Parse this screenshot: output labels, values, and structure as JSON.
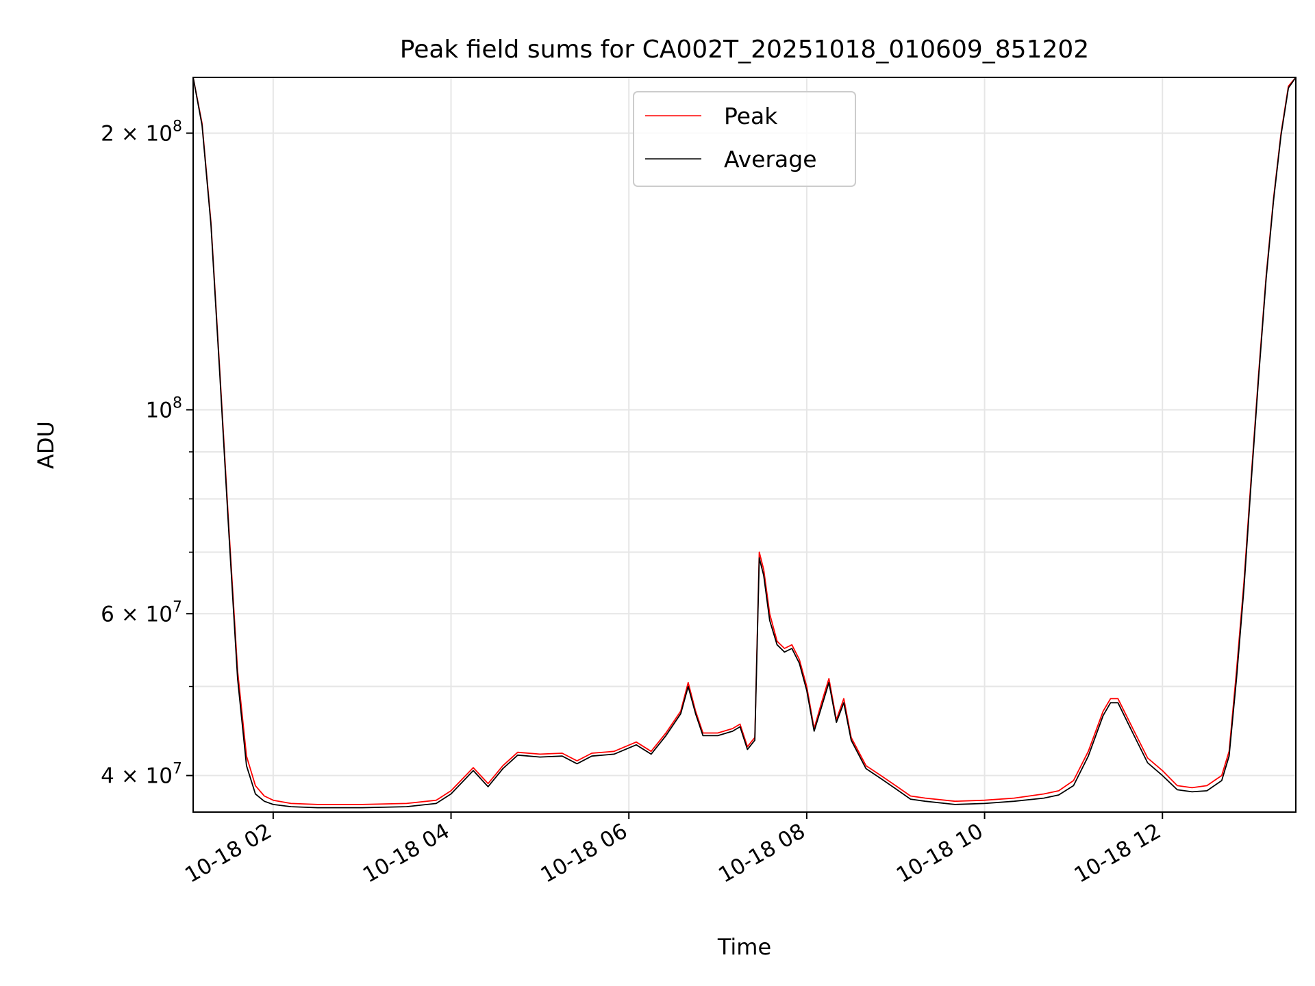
{
  "chart_data": {
    "type": "line",
    "title": "Peak field sums for CA002T_20251018_010609_851202",
    "xlabel": "Time",
    "ylabel": "ADU",
    "y_scale": "log",
    "grid": true,
    "legend_position": "top-center",
    "xlim": [
      "2025-10-18 01:06",
      "2025-10-18 13:30"
    ],
    "ylim": [
      36500000,
      230000000
    ],
    "x_ticks": [
      {
        "value": "2025-10-18 02:00",
        "label": "10-18 02"
      },
      {
        "value": "2025-10-18 04:00",
        "label": "10-18 04"
      },
      {
        "value": "2025-10-18 06:00",
        "label": "10-18 06"
      },
      {
        "value": "2025-10-18 08:00",
        "label": "10-18 08"
      },
      {
        "value": "2025-10-18 10:00",
        "label": "10-18 10"
      },
      {
        "value": "2025-10-18 12:00",
        "label": "10-18 12"
      }
    ],
    "y_ticks": [
      {
        "value": 40000000,
        "base": "4 × 10",
        "exp": "7"
      },
      {
        "value": 60000000,
        "base": "6 × 10",
        "exp": "7"
      },
      {
        "value": 100000000,
        "base": "10",
        "exp": "8"
      },
      {
        "value": 200000000,
        "base": "2 × 10",
        "exp": "8"
      }
    ],
    "y_minor_ticks": [
      50000000,
      70000000,
      80000000,
      90000000
    ],
    "series": [
      {
        "name": "Peak",
        "color": "#ff0000",
        "x": [
          "2025-10-18 01:06",
          "2025-10-18 01:12",
          "2025-10-18 01:18",
          "2025-10-18 01:24",
          "2025-10-18 01:30",
          "2025-10-18 01:36",
          "2025-10-18 01:42",
          "2025-10-18 01:48",
          "2025-10-18 01:54",
          "2025-10-18 02:00",
          "2025-10-18 02:12",
          "2025-10-18 02:30",
          "2025-10-18 03:00",
          "2025-10-18 03:30",
          "2025-10-18 03:50",
          "2025-10-18 04:00",
          "2025-10-18 04:15",
          "2025-10-18 04:25",
          "2025-10-18 04:35",
          "2025-10-18 04:45",
          "2025-10-18 05:00",
          "2025-10-18 05:15",
          "2025-10-18 05:25",
          "2025-10-18 05:35",
          "2025-10-18 05:50",
          "2025-10-18 06:05",
          "2025-10-18 06:15",
          "2025-10-18 06:25",
          "2025-10-18 06:35",
          "2025-10-18 06:40",
          "2025-10-18 06:45",
          "2025-10-18 06:50",
          "2025-10-18 07:00",
          "2025-10-18 07:10",
          "2025-10-18 07:15",
          "2025-10-18 07:20",
          "2025-10-18 07:25",
          "2025-10-18 07:28",
          "2025-10-18 07:31",
          "2025-10-18 07:35",
          "2025-10-18 07:40",
          "2025-10-18 07:45",
          "2025-10-18 07:50",
          "2025-10-18 07:55",
          "2025-10-18 08:00",
          "2025-10-18 08:05",
          "2025-10-18 08:10",
          "2025-10-18 08:15",
          "2025-10-18 08:20",
          "2025-10-18 08:25",
          "2025-10-18 08:30",
          "2025-10-18 08:40",
          "2025-10-18 08:50",
          "2025-10-18 09:00",
          "2025-10-18 09:10",
          "2025-10-18 09:20",
          "2025-10-18 09:40",
          "2025-10-18 10:00",
          "2025-10-18 10:20",
          "2025-10-18 10:40",
          "2025-10-18 10:50",
          "2025-10-18 11:00",
          "2025-10-18 11:10",
          "2025-10-18 11:20",
          "2025-10-18 11:25",
          "2025-10-18 11:30",
          "2025-10-18 11:40",
          "2025-10-18 11:50",
          "2025-10-18 12:00",
          "2025-10-18 12:10",
          "2025-10-18 12:20",
          "2025-10-18 12:30",
          "2025-10-18 12:40",
          "2025-10-18 12:45",
          "2025-10-18 12:50",
          "2025-10-18 12:55",
          "2025-10-18 13:00",
          "2025-10-18 13:05",
          "2025-10-18 13:10",
          "2025-10-18 13:15",
          "2025-10-18 13:20",
          "2025-10-18 13:25",
          "2025-10-18 13:30"
        ],
        "y": [
          230000000,
          205000000,
          160000000,
          110000000,
          75000000,
          52000000,
          42000000,
          39000000,
          38000000,
          37600000,
          37300000,
          37200000,
          37200000,
          37300000,
          37600000,
          38500000,
          40800000,
          39200000,
          41000000,
          42400000,
          42200000,
          42300000,
          41500000,
          42300000,
          42500000,
          43500000,
          42500000,
          44500000,
          47000000,
          50500000,
          47000000,
          44500000,
          44500000,
          45000000,
          45500000,
          43000000,
          44000000,
          70000000,
          67000000,
          60000000,
          56000000,
          55000000,
          55500000,
          53500000,
          50000000,
          45000000,
          48000000,
          51000000,
          46000000,
          48500000,
          44000000,
          41000000,
          40000000,
          39000000,
          38000000,
          37800000,
          37500000,
          37600000,
          37800000,
          38200000,
          38500000,
          39500000,
          42500000,
          47000000,
          48500000,
          48500000,
          45000000,
          41800000,
          40500000,
          39000000,
          38800000,
          39000000,
          40000000,
          42500000,
          52000000,
          65000000,
          85000000,
          110000000,
          140000000,
          170000000,
          200000000,
          225000000,
          230000000
        ]
      },
      {
        "name": "Average",
        "color": "#000000",
        "x": [
          "2025-10-18 01:06",
          "2025-10-18 01:12",
          "2025-10-18 01:18",
          "2025-10-18 01:24",
          "2025-10-18 01:30",
          "2025-10-18 01:36",
          "2025-10-18 01:42",
          "2025-10-18 01:48",
          "2025-10-18 01:54",
          "2025-10-18 02:00",
          "2025-10-18 02:12",
          "2025-10-18 02:30",
          "2025-10-18 03:00",
          "2025-10-18 03:30",
          "2025-10-18 03:50",
          "2025-10-18 04:00",
          "2025-10-18 04:15",
          "2025-10-18 04:25",
          "2025-10-18 04:35",
          "2025-10-18 04:45",
          "2025-10-18 05:00",
          "2025-10-18 05:15",
          "2025-10-18 05:25",
          "2025-10-18 05:35",
          "2025-10-18 05:50",
          "2025-10-18 06:05",
          "2025-10-18 06:15",
          "2025-10-18 06:25",
          "2025-10-18 06:35",
          "2025-10-18 06:40",
          "2025-10-18 06:45",
          "2025-10-18 06:50",
          "2025-10-18 07:00",
          "2025-10-18 07:10",
          "2025-10-18 07:15",
          "2025-10-18 07:20",
          "2025-10-18 07:25",
          "2025-10-18 07:28",
          "2025-10-18 07:31",
          "2025-10-18 07:35",
          "2025-10-18 07:40",
          "2025-10-18 07:45",
          "2025-10-18 07:50",
          "2025-10-18 07:55",
          "2025-10-18 08:00",
          "2025-10-18 08:05",
          "2025-10-18 08:10",
          "2025-10-18 08:15",
          "2025-10-18 08:20",
          "2025-10-18 08:25",
          "2025-10-18 08:30",
          "2025-10-18 08:40",
          "2025-10-18 08:50",
          "2025-10-18 09:00",
          "2025-10-18 09:10",
          "2025-10-18 09:20",
          "2025-10-18 09:40",
          "2025-10-18 10:00",
          "2025-10-18 10:20",
          "2025-10-18 10:40",
          "2025-10-18 10:50",
          "2025-10-18 11:00",
          "2025-10-18 11:10",
          "2025-10-18 11:20",
          "2025-10-18 11:25",
          "2025-10-18 11:30",
          "2025-10-18 11:40",
          "2025-10-18 11:50",
          "2025-10-18 12:00",
          "2025-10-18 12:10",
          "2025-10-18 12:20",
          "2025-10-18 12:30",
          "2025-10-18 12:40",
          "2025-10-18 12:45",
          "2025-10-18 12:50",
          "2025-10-18 12:55",
          "2025-10-18 13:00",
          "2025-10-18 13:05",
          "2025-10-18 13:10",
          "2025-10-18 13:15",
          "2025-10-18 13:20",
          "2025-10-18 13:25",
          "2025-10-18 13:30"
        ],
        "y": [
          230000000,
          204000000,
          159000000,
          109000000,
          74000000,
          51000000,
          41000000,
          38200000,
          37500000,
          37200000,
          37000000,
          36900000,
          36900000,
          37000000,
          37300000,
          38200000,
          40500000,
          38900000,
          40700000,
          42100000,
          41900000,
          42000000,
          41200000,
          42000000,
          42200000,
          43200000,
          42200000,
          44200000,
          46700000,
          50000000,
          46700000,
          44200000,
          44200000,
          44700000,
          45200000,
          42700000,
          43700000,
          69000000,
          66000000,
          59000000,
          55500000,
          54500000,
          55000000,
          53000000,
          49500000,
          44700000,
          47500000,
          50500000,
          45700000,
          48000000,
          43700000,
          40700000,
          39700000,
          38700000,
          37700000,
          37500000,
          37200000,
          37300000,
          37500000,
          37800000,
          38100000,
          39000000,
          42000000,
          46500000,
          48000000,
          48000000,
          44500000,
          41300000,
          40000000,
          38600000,
          38400000,
          38500000,
          39500000,
          42000000,
          51000000,
          64000000,
          84000000,
          109000000,
          139000000,
          169000000,
          199000000,
          224000000,
          230000000
        ]
      }
    ]
  }
}
